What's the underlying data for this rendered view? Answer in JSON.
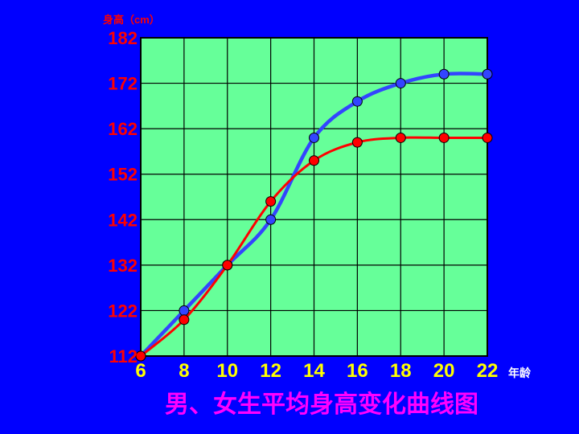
{
  "chart_data": {
    "type": "line",
    "title": "男、女生平均身高变化曲线图",
    "ylabel": "身高（cm）",
    "xlabel": "年龄",
    "x": [
      6,
      8,
      10,
      12,
      14,
      16,
      18,
      20,
      22
    ],
    "xlim": [
      6,
      22
    ],
    "ylim": [
      112,
      182
    ],
    "yticks": [
      112,
      122,
      132,
      142,
      152,
      162,
      172,
      182
    ],
    "grid": true,
    "series": [
      {
        "color": "#3344FF",
        "values": [
          112,
          122,
          132,
          142,
          160,
          168,
          172,
          174,
          174
        ]
      },
      {
        "color": "#FF0000",
        "values": [
          112,
          120,
          132,
          146,
          155,
          159,
          160,
          160,
          160
        ]
      }
    ]
  },
  "colors": {
    "background": "#0000FF",
    "plot_area": "#66FF99",
    "grid": "#000000",
    "y_labels": "#FF0000",
    "x_labels": "#FFFF00",
    "title": "#FF00FF",
    "x_unit": "#FFFFFF"
  }
}
